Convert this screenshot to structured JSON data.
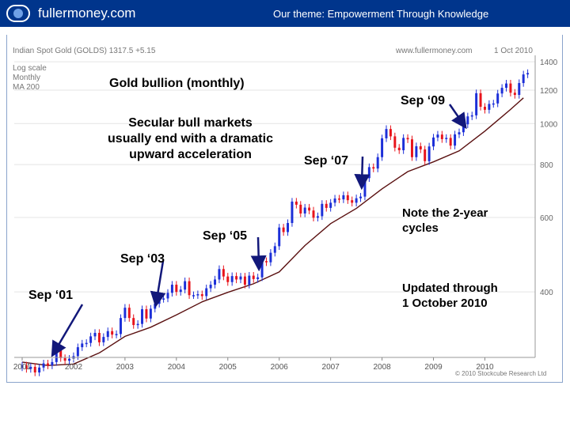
{
  "header": {
    "site": "fullermoney.com",
    "theme": "Our theme: Empowerment Through Knowledge"
  },
  "chart_header": {
    "left": "Indian Spot Gold (GOLDS) 1317.5 +5.15",
    "right": "www.fullermoney.com",
    "date": "1 Oct 2010"
  },
  "chart_legend": [
    "Log scale",
    "Monthly",
    "MA 200"
  ],
  "copyright": "© 2010 Stockcube Research Ltd",
  "colors": {
    "header_bg": "#00358c",
    "up": "#1c2fd8",
    "down": "#e8141b",
    "ma": "#5a1010",
    "arrow": "#12187a"
  },
  "chart_data": {
    "type": "candlestick",
    "title": "Gold bullion (monthly)",
    "scale": "log",
    "ylim": [
      280,
      1450
    ],
    "yticks": [
      400,
      600,
      800,
      1000,
      1200,
      1400
    ],
    "xticks": [
      "2001",
      "2002",
      "2003",
      "2004",
      "2005",
      "2006",
      "2007",
      "2008",
      "2009",
      "2010"
    ],
    "x_start_year": 2001,
    "close_monthly": [
      268,
      263,
      266,
      258,
      265,
      271,
      268,
      273,
      293,
      279,
      275,
      278,
      282,
      296,
      302,
      303,
      314,
      320,
      304,
      313,
      323,
      317,
      318,
      347,
      367,
      347,
      334,
      336,
      364,
      346,
      365,
      375,
      385,
      386,
      398,
      416,
      400,
      405,
      424,
      393,
      393,
      395,
      391,
      408,
      416,
      428,
      453,
      435,
      422,
      436,
      428,
      435,
      416,
      437,
      429,
      433,
      473,
      470,
      495,
      513,
      568,
      554,
      582,
      654,
      643,
      613,
      633,
      623,
      599,
      604,
      646,
      632,
      650,
      665,
      662,
      677,
      659,
      650,
      666,
      672,
      743,
      789,
      783,
      833,
      923,
      971,
      933,
      877,
      865,
      925,
      918,
      833,
      884,
      869,
      815,
      883,
      927,
      942,
      919,
      925,
      887,
      943,
      954,
      996,
      1040,
      1046,
      1180,
      1096,
      1078,
      1113,
      1116,
      1178,
      1215,
      1244,
      1183,
      1169,
      1247,
      1307,
      1317
    ],
    "ma": [
      [
        2001.0,
        273
      ],
      [
        2001.5,
        268
      ],
      [
        2002.0,
        270
      ],
      [
        2002.5,
        287
      ],
      [
        2003.0,
        314
      ],
      [
        2003.5,
        330
      ],
      [
        2004.0,
        353
      ],
      [
        2004.5,
        379
      ],
      [
        2005.0,
        399
      ],
      [
        2005.5,
        418
      ],
      [
        2006.0,
        446
      ],
      [
        2006.5,
        515
      ],
      [
        2007.0,
        580
      ],
      [
        2007.5,
        630
      ],
      [
        2008.0,
        701
      ],
      [
        2008.5,
        770
      ],
      [
        2009.0,
        812
      ],
      [
        2009.5,
        862
      ],
      [
        2010.0,
        960
      ],
      [
        2010.5,
        1080
      ],
      [
        2010.75,
        1150
      ]
    ]
  },
  "annotations": {
    "title": "Gold bullion (monthly)",
    "secular": [
      "Secular bull markets",
      "usually end with a dramatic",
      "upward acceleration"
    ],
    "sep01": "Sep ‘01",
    "sep03": "Sep ‘03",
    "sep05": "Sep ‘05",
    "sep07": "Sep ‘07",
    "sep09": "Sep ‘09",
    "cycles": [
      "Note the 2-year",
      "cycles"
    ],
    "updated": [
      "Updated through",
      "1 October 2010"
    ]
  }
}
